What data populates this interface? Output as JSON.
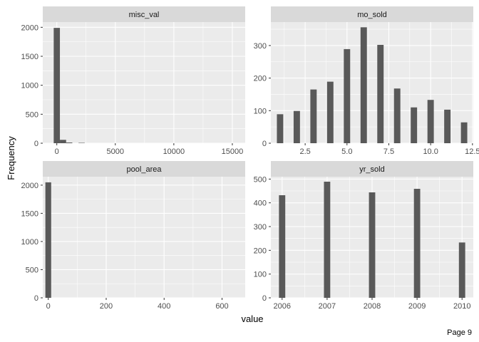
{
  "page": {
    "footer": "Page 9"
  },
  "chart_data": {
    "type": "bar",
    "xlabel": "value",
    "ylabel": "Frequency",
    "bar_color": "#595959",
    "panel_background": "#ebebeb",
    "strip_background": "#d9d9d9",
    "grid_color": "#ffffff",
    "panels": [
      {
        "id": "misc-val",
        "title": "misc_val",
        "xlim": [
          -1200,
          16100
        ],
        "ylim": [
          0,
          2090
        ],
        "xticks": [
          0,
          5000,
          10000,
          15000
        ],
        "xtick_labels": [
          "0",
          "5000",
          "10000",
          "15000"
        ],
        "yticks": [
          0,
          500,
          1000,
          1500,
          2000
        ],
        "ytick_labels": [
          "0",
          "500",
          "1000",
          "1500",
          "2000"
        ],
        "bar_width": 530,
        "x": [
          0,
          530,
          1060,
          2120
        ],
        "values": [
          1990,
          58,
          12,
          6
        ]
      },
      {
        "id": "mo-sold",
        "title": "mo_sold",
        "xlim": [
          0.45,
          12.55
        ],
        "ylim": [
          0,
          372
        ],
        "xticks": [
          2.5,
          5.0,
          7.5,
          10.0,
          12.5
        ],
        "xtick_labels": [
          "2.5",
          "5.0",
          "7.5",
          "10.0",
          "12.5"
        ],
        "yticks": [
          0,
          100,
          200,
          300
        ],
        "ytick_labels": [
          "0",
          "100",
          "200",
          "300"
        ],
        "bar_width": 0.38,
        "x": [
          1,
          2,
          3,
          4,
          5,
          6,
          7,
          8,
          9,
          10,
          11,
          12
        ],
        "values": [
          89,
          99,
          165,
          189,
          289,
          356,
          302,
          168,
          110,
          133,
          103,
          64
        ]
      },
      {
        "id": "pool-area",
        "title": "pool_area",
        "xlim": [
          -19,
          680
        ],
        "ylim": [
          0,
          2150
        ],
        "xticks": [
          0,
          200,
          400,
          600
        ],
        "xtick_labels": [
          "0",
          "200",
          "400",
          "600"
        ],
        "yticks": [
          0,
          500,
          1000,
          1500,
          2000
        ],
        "ytick_labels": [
          "0",
          "500",
          "1000",
          "1500",
          "2000"
        ],
        "bar_width": 20,
        "x": [
          0
        ],
        "values": [
          2050
        ]
      },
      {
        "id": "yr-sold",
        "title": "yr_sold",
        "xlim": [
          2005.75,
          2010.25
        ],
        "ylim": [
          0,
          510
        ],
        "xticks": [
          2006,
          2007,
          2008,
          2009,
          2010
        ],
        "xtick_labels": [
          "2006",
          "2007",
          "2008",
          "2009",
          "2010"
        ],
        "yticks": [
          0,
          100,
          200,
          300,
          400,
          500
        ],
        "ytick_labels": [
          "0",
          "100",
          "200",
          "300",
          "400",
          "500"
        ],
        "bar_width": 0.14,
        "x": [
          2006,
          2007,
          2008,
          2009,
          2010
        ],
        "values": [
          432,
          489,
          444,
          459,
          233
        ]
      }
    ]
  }
}
